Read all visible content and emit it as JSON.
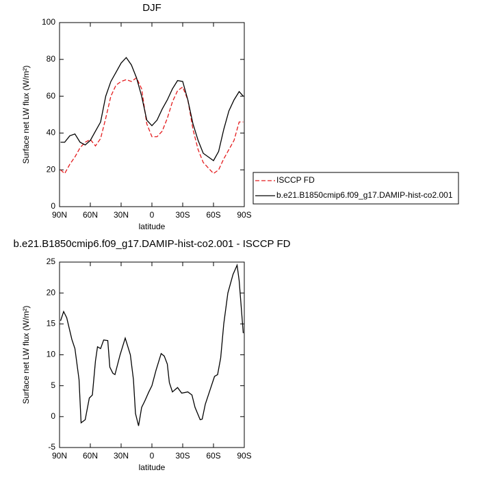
{
  "chart_data": [
    {
      "type": "line",
      "title": "DJF",
      "xlabel": "latitude",
      "ylabel": "Surface net LW flux (W/m²)",
      "x": [
        89,
        85,
        80,
        75,
        70,
        65,
        60,
        55,
        50,
        45,
        40,
        35,
        30,
        25,
        20,
        15,
        10,
        5,
        0,
        -5,
        -10,
        -15,
        -20,
        -25,
        -30,
        -35,
        -40,
        -45,
        -50,
        -55,
        -60,
        -65,
        -70,
        -75,
        -80,
        -85,
        -89
      ],
      "series": [
        {
          "name": "ISCCP FD",
          "color": "#e41a1c",
          "dash": true,
          "values": [
            20,
            18,
            23,
            27,
            32,
            35,
            36.5,
            33,
            37,
            48,
            60,
            66,
            68,
            69,
            68,
            70,
            64,
            45,
            38,
            38,
            41,
            48,
            57,
            63,
            65,
            58,
            42,
            31,
            24,
            21,
            18,
            20,
            26,
            31,
            36,
            46,
            46
          ]
        },
        {
          "name": "b.e21.B1850cmip6.f09_g17.DAMIP-hist-co2.001",
          "color": "#000000",
          "dash": false,
          "values": [
            35,
            35,
            38.5,
            39.5,
            35,
            33.5,
            36,
            41,
            46,
            60,
            68,
            73,
            78,
            81,
            77,
            70,
            60,
            47,
            44,
            47,
            53,
            58,
            64,
            68.5,
            68,
            58,
            45,
            36,
            29,
            27,
            25,
            30,
            42,
            52,
            58,
            62.5,
            60
          ]
        }
      ],
      "xlim": [
        90,
        -90
      ],
      "xticks": [
        {
          "value": 90,
          "label": "90N"
        },
        {
          "value": 60,
          "label": "60N"
        },
        {
          "value": 30,
          "label": "30N"
        },
        0,
        {
          "value": -30,
          "label": "30S"
        },
        {
          "value": -60,
          "label": "60S"
        },
        {
          "value": -90,
          "label": "90S"
        }
      ],
      "ylim": [
        0,
        100
      ],
      "yticks": [
        0,
        20,
        40,
        60,
        80,
        100
      ],
      "legend": "outside-right"
    },
    {
      "type": "line",
      "title": "b.e21.B1850cmip6.f09_g17.DAMIP-hist-co2.001 - ISCCP FD",
      "xlabel": "latitude",
      "ylabel": "Surface net LW flux (W/m²)",
      "x": [
        89,
        86,
        83,
        78,
        75,
        71,
        69,
        65,
        61,
        58,
        55,
        53,
        50,
        47,
        43,
        41,
        38,
        36,
        31,
        26,
        21,
        18,
        16,
        13,
        10,
        7,
        3,
        0,
        -4,
        -9,
        -12,
        -15,
        -17,
        -20,
        -25,
        -29,
        -35,
        -39,
        -42,
        -47,
        -49,
        -52,
        -57,
        -61,
        -64,
        -67,
        -70,
        -74,
        -79,
        -83,
        -85,
        -89
      ],
      "color": "#000000",
      "values": [
        15.5,
        17,
        16,
        12.5,
        11,
        6,
        -1,
        -0.5,
        3,
        3.5,
        9,
        11.3,
        11,
        12.4,
        12.3,
        8,
        7,
        6.8,
        10,
        12.7,
        10,
        6,
        0.5,
        -1.5,
        1.5,
        2.5,
        4,
        5,
        7.5,
        10.2,
        9.8,
        8.5,
        5.5,
        4,
        4.7,
        3.8,
        4,
        3.5,
        1.5,
        -0.5,
        -0.4,
        2,
        4.5,
        6.5,
        6.8,
        9.5,
        15,
        20,
        23,
        24.5,
        22,
        13.5
      ],
      "xlim": [
        90,
        -90
      ],
      "xticks": [
        {
          "value": 90,
          "label": "90N"
        },
        {
          "value": 60,
          "label": "60N"
        },
        {
          "value": 30,
          "label": "30N"
        },
        0,
        {
          "value": -30,
          "label": "30S"
        },
        {
          "value": -60,
          "label": "60S"
        },
        {
          "value": -90,
          "label": "90S"
        }
      ],
      "ylim": [
        -5,
        25
      ],
      "yticks": [
        -5,
        0,
        5,
        10,
        15,
        20,
        25
      ]
    }
  ]
}
